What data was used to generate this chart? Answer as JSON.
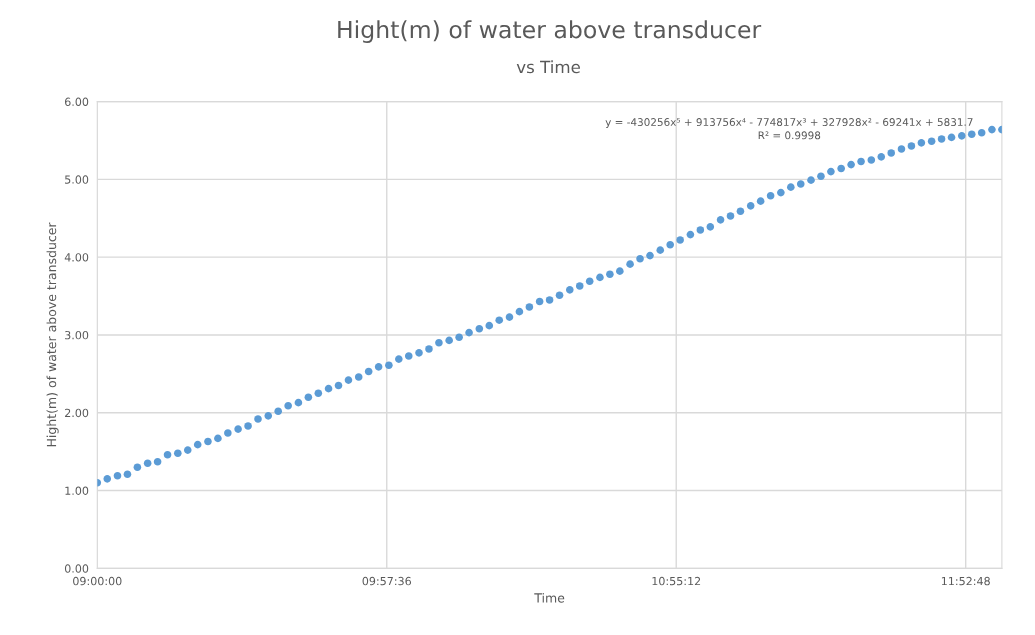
{
  "chart_data": {
    "type": "scatter",
    "title": "Hight(m) of water above transducer",
    "subtitle": "vs Time",
    "xlabel": "Time",
    "ylabel": "Hight(m) of water above transducer",
    "x": [
      9,
      9.033,
      9.067,
      9.1,
      9.133,
      9.167,
      9.2,
      9.233,
      9.267,
      9.3,
      9.333,
      9.367,
      9.4,
      9.433,
      9.467,
      9.5,
      9.533,
      9.567,
      9.6,
      9.633,
      9.667,
      9.7,
      9.733,
      9.767,
      9.8,
      9.833,
      9.867,
      9.9,
      9.933,
      9.967,
      10,
      10.033,
      10.067,
      10.1,
      10.133,
      10.167,
      10.2,
      10.233,
      10.267,
      10.3,
      10.333,
      10.367,
      10.4,
      10.433,
      10.467,
      10.5,
      10.533,
      10.567,
      10.6,
      10.633,
      10.667,
      10.7,
      10.733,
      10.767,
      10.8,
      10.833,
      10.867,
      10.9,
      10.933,
      10.967,
      11,
      11.033,
      11.067,
      11.1,
      11.133,
      11.167,
      11.2,
      11.233,
      11.267,
      11.3,
      11.333,
      11.367,
      11.4,
      11.433,
      11.467,
      11.5,
      11.533,
      11.567,
      11.6,
      11.633,
      11.667,
      11.7,
      11.733,
      11.767,
      11.8,
      11.833,
      11.867,
      11.9,
      11.933,
      11.967,
      12
    ],
    "series": [
      {
        "color": "#5b9bd5",
        "values": [
          1.1,
          1.15,
          1.19,
          1.21,
          1.3,
          1.35,
          1.37,
          1.46,
          1.48,
          1.52,
          1.59,
          1.63,
          1.67,
          1.74,
          1.79,
          1.83,
          1.92,
          1.96,
          2.02,
          2.09,
          2.13,
          2.2,
          2.25,
          2.31,
          2.35,
          2.42,
          2.46,
          2.53,
          2.59,
          2.61,
          2.69,
          2.73,
          2.77,
          2.82,
          2.9,
          2.93,
          2.97,
          3.03,
          3.08,
          3.12,
          3.19,
          3.23,
          3.3,
          3.36,
          3.43,
          3.45,
          3.51,
          3.58,
          3.63,
          3.69,
          3.74,
          3.78,
          3.82,
          3.91,
          3.98,
          4.02,
          4.09,
          4.16,
          4.22,
          4.29,
          4.35,
          4.39,
          4.48,
          4.53,
          4.59,
          4.66,
          4.72,
          4.79,
          4.83,
          4.9,
          4.94,
          4.99,
          5.04,
          5.1,
          5.14,
          5.19,
          5.23,
          5.25,
          5.29,
          5.34,
          5.39,
          5.43,
          5.47,
          5.49,
          5.52,
          5.54,
          5.56,
          5.58,
          5.6,
          5.64,
          5.64
        ]
      }
    ],
    "xlim": [
      9,
      12
    ],
    "xticks": [
      {
        "value": 9,
        "label": "09:00:00"
      },
      {
        "value": 9.96,
        "label": "09:57:36"
      },
      {
        "value": 10.92,
        "label": "10:55:12"
      },
      {
        "value": 11.88,
        "label": "11:52:48"
      }
    ],
    "ylim": [
      0,
      6
    ],
    "yticks": [
      {
        "value": 0,
        "label": "0.00"
      },
      {
        "value": 1,
        "label": "1.00"
      },
      {
        "value": 2,
        "label": "2.00"
      },
      {
        "value": 3,
        "label": "3.00"
      },
      {
        "value": 4,
        "label": "4.00"
      },
      {
        "value": 5,
        "label": "5.00"
      },
      {
        "value": 6,
        "label": "6.00"
      }
    ],
    "grid": true,
    "marker": "circle",
    "annotations": [
      "y = -430256x⁵ + 913756x⁴ - 774817x³ + 327928x² - 69241x + 5831.7\nR² = 0.9998"
    ]
  }
}
